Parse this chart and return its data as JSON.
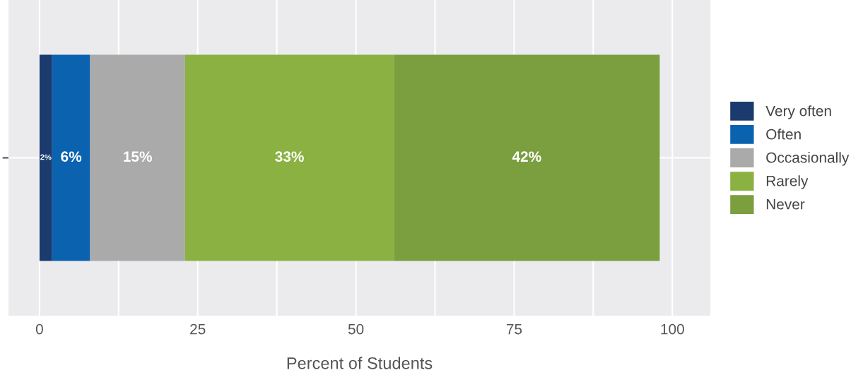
{
  "chart_data": {
    "type": "bar",
    "orientation": "horizontal",
    "stacked": true,
    "xlabel": "Percent of Students",
    "categories": [
      null
    ],
    "series": [
      {
        "name": "Very often",
        "color": "#1b3b6f",
        "values": [
          2
        ],
        "value_labels": [
          "2%"
        ]
      },
      {
        "name": "Often",
        "color": "#0b63b0",
        "values": [
          6
        ],
        "value_labels": [
          "6%"
        ]
      },
      {
        "name": "Occasionally",
        "color": "#aaaaaa",
        "values": [
          15
        ],
        "value_labels": [
          "15%"
        ]
      },
      {
        "name": "Rarely",
        "color": "#8bb142",
        "values": [
          33
        ],
        "value_labels": [
          "33%"
        ]
      },
      {
        "name": "Never",
        "color": "#7b9e3e",
        "values": [
          42
        ],
        "value_labels": [
          "42%"
        ]
      }
    ],
    "xlim": [
      -4.9,
      106
    ],
    "xticks": [
      0,
      {
        "value": 12.5,
        "label": null
      },
      25,
      {
        "value": 37.5,
        "label": null
      },
      50,
      {
        "value": 62.5,
        "label": null
      },
      75,
      {
        "value": 87.5,
        "label": null
      },
      100
    ],
    "grid": true,
    "legend": "right"
  }
}
